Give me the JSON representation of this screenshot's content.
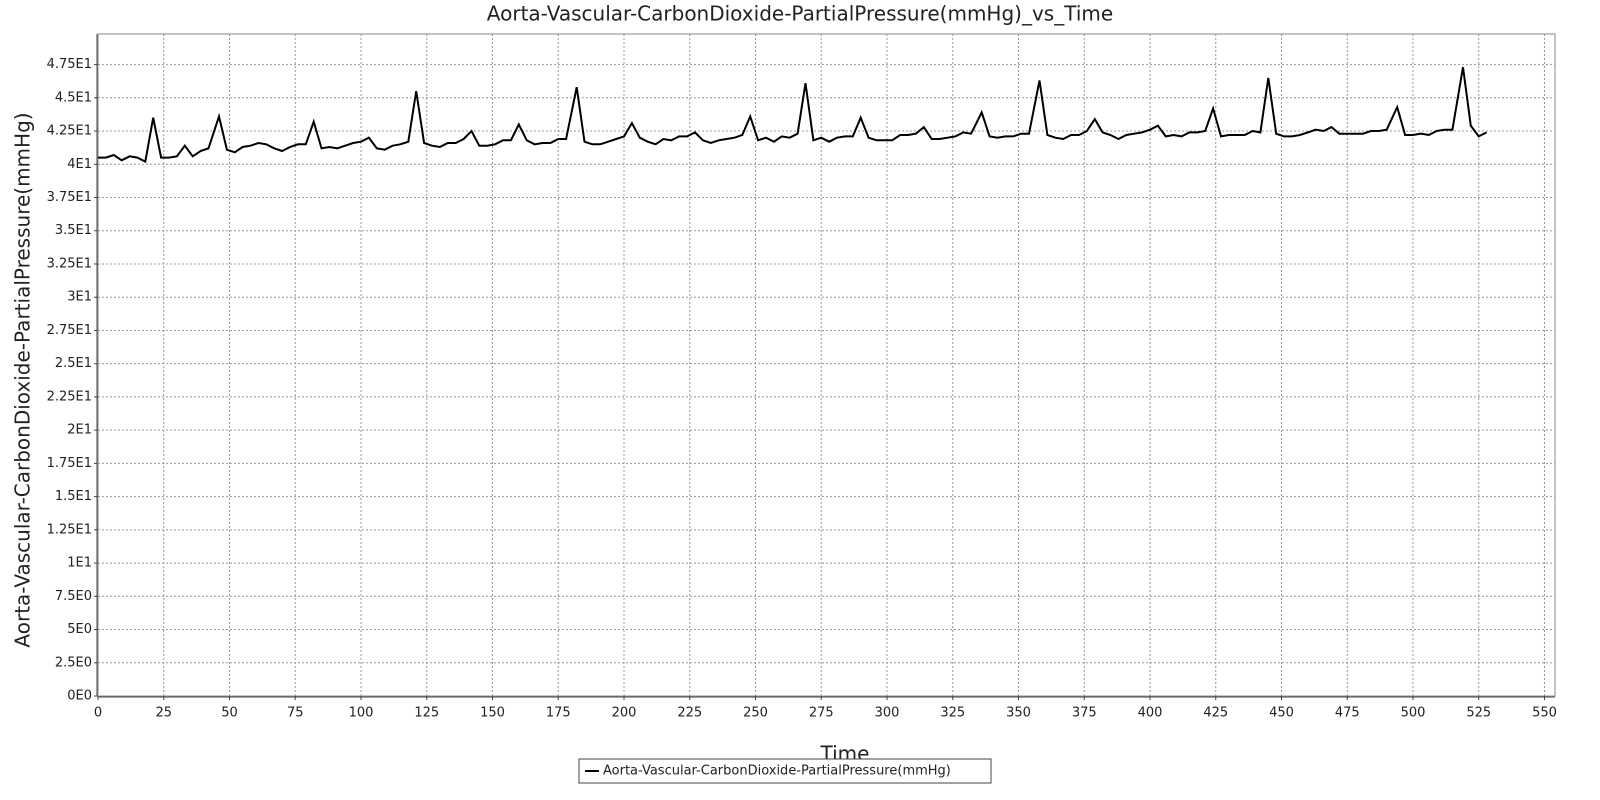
{
  "chart_data": {
    "type": "line",
    "title": "Aorta-Vascular-CarbonDioxide-PartialPressure(mmHg)_vs_Time",
    "x_label": "Time",
    "y_label": "Aorta-Vascular-CarbonDioxide-PartialPressure(mmHg)",
    "x": [
      0,
      3,
      6,
      9,
      12,
      15,
      18,
      21,
      24,
      27,
      30,
      33,
      36,
      39,
      42,
      46,
      49,
      52,
      55,
      58,
      61,
      64,
      67,
      70,
      73,
      76,
      79,
      82,
      85,
      88,
      91,
      94,
      97,
      100,
      103,
      106,
      109,
      112,
      115,
      118,
      121,
      124,
      127,
      130,
      133,
      136,
      139,
      142,
      145,
      148,
      151,
      154,
      157,
      160,
      163,
      166,
      169,
      172,
      175,
      178,
      182,
      185,
      188,
      191,
      194,
      197,
      200,
      203,
      206,
      209,
      212,
      215,
      218,
      221,
      224,
      227,
      230,
      233,
      236,
      239,
      242,
      245,
      248,
      251,
      254,
      257,
      260,
      263,
      266,
      269,
      272,
      275,
      278,
      281,
      284,
      287,
      290,
      293,
      296,
      299,
      302,
      305,
      308,
      311,
      314,
      317,
      320,
      323,
      326,
      329,
      332,
      336,
      339,
      342,
      345,
      348,
      351,
      354,
      358,
      361,
      364,
      367,
      370,
      373,
      376,
      379,
      382,
      385,
      388,
      391,
      394,
      397,
      400,
      403,
      406,
      409,
      412,
      415,
      418,
      421,
      424,
      427,
      430,
      433,
      436,
      439,
      442,
      445,
      448,
      451,
      454,
      457,
      460,
      463,
      466,
      469,
      472,
      475,
      478,
      481,
      484,
      487,
      490,
      494,
      497,
      500,
      503,
      506,
      509,
      512,
      515,
      519,
      522,
      525,
      528
    ],
    "series": [
      {
        "name": "Aorta-Vascular-CarbonDioxide-PartialPressure(mmHg)",
        "color": "#000000",
        "values": [
          40.5,
          40.5,
          40.7,
          40.3,
          40.6,
          40.5,
          40.2,
          43.5,
          40.5,
          40.5,
          40.6,
          41.4,
          40.6,
          41.0,
          41.2,
          43.6,
          41.1,
          40.9,
          41.3,
          41.4,
          41.6,
          41.5,
          41.2,
          41.0,
          41.3,
          41.5,
          41.5,
          43.2,
          41.2,
          41.3,
          41.2,
          41.4,
          41.6,
          41.7,
          42.0,
          41.2,
          41.1,
          41.4,
          41.5,
          41.7,
          45.5,
          41.6,
          41.4,
          41.3,
          41.6,
          41.6,
          41.9,
          42.5,
          41.4,
          41.4,
          41.5,
          41.8,
          41.8,
          43.0,
          41.8,
          41.5,
          41.6,
          41.6,
          41.9,
          41.9,
          45.8,
          41.7,
          41.5,
          41.5,
          41.7,
          41.9,
          42.1,
          43.1,
          42.0,
          41.7,
          41.5,
          41.9,
          41.8,
          42.1,
          42.1,
          42.4,
          41.8,
          41.6,
          41.8,
          41.9,
          42.0,
          42.2,
          43.6,
          41.8,
          42.0,
          41.7,
          42.1,
          42.0,
          42.3,
          46.1,
          41.8,
          42.0,
          41.7,
          42.0,
          42.1,
          42.1,
          43.5,
          42.0,
          41.8,
          41.8,
          41.8,
          42.2,
          42.2,
          42.3,
          42.8,
          41.9,
          41.9,
          42.0,
          42.1,
          42.4,
          42.3,
          43.9,
          42.1,
          42.0,
          42.1,
          42.1,
          42.3,
          42.3,
          46.3,
          42.2,
          42.0,
          41.9,
          42.2,
          42.2,
          42.5,
          43.4,
          42.4,
          42.2,
          41.9,
          42.2,
          42.3,
          42.4,
          42.6,
          42.9,
          42.1,
          42.2,
          42.1,
          42.4,
          42.4,
          42.5,
          44.2,
          42.1,
          42.2,
          42.2,
          42.2,
          42.5,
          42.4,
          46.5,
          42.3,
          42.1,
          42.1,
          42.2,
          42.4,
          42.6,
          42.5,
          42.8,
          42.3,
          42.3,
          42.3,
          42.3,
          42.5,
          42.5,
          42.6,
          44.3,
          42.2,
          42.2,
          42.3,
          42.2,
          42.5,
          42.6,
          42.6,
          47.3,
          42.9,
          42.1,
          42.4
        ]
      }
    ],
    "xlim": [
      0,
      554
    ],
    "xticks": [
      0,
      25,
      50,
      75,
      100,
      125,
      150,
      175,
      200,
      225,
      250,
      275,
      300,
      325,
      350,
      375,
      400,
      425,
      450,
      475,
      500,
      525,
      550
    ],
    "ylim": [
      0,
      49.8
    ],
    "yticks": [
      {
        "value": 0,
        "label": "0E0"
      },
      {
        "value": 2.5,
        "label": "2.5E0"
      },
      {
        "value": 5,
        "label": "5E0"
      },
      {
        "value": 7.5,
        "label": "7.5E0"
      },
      {
        "value": 10,
        "label": "1E1"
      },
      {
        "value": 12.5,
        "label": "1.25E1"
      },
      {
        "value": 15,
        "label": "1.5E1"
      },
      {
        "value": 17.5,
        "label": "1.75E1"
      },
      {
        "value": 20,
        "label": "2E1"
      },
      {
        "value": 22.5,
        "label": "2.25E1"
      },
      {
        "value": 25,
        "label": "2.5E1"
      },
      {
        "value": 27.5,
        "label": "2.75E1"
      },
      {
        "value": 30,
        "label": "3E1"
      },
      {
        "value": 32.5,
        "label": "3.25E1"
      },
      {
        "value": 35,
        "label": "3.5E1"
      },
      {
        "value": 37.5,
        "label": "3.75E1"
      },
      {
        "value": 40,
        "label": "4E1"
      },
      {
        "value": 42.5,
        "label": "4.25E1"
      },
      {
        "value": 45,
        "label": "4.5E1"
      },
      {
        "value": 47.5,
        "label": "4.75E1"
      }
    ],
    "grid": true
  }
}
